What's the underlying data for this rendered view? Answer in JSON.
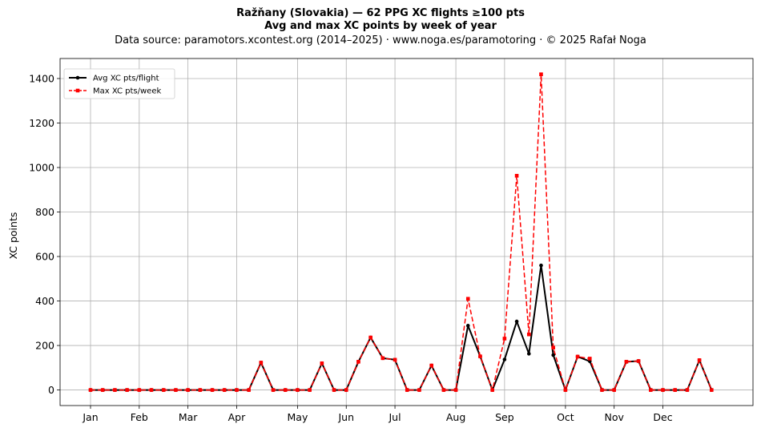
{
  "chart_data": {
    "type": "line",
    "title": "Ražňany (Slovakia)  —  62 PPG XC flights ≥100 pts",
    "subtitle": "Avg and max XC points by week of year",
    "source": "Data source: paramotors.xcontest.org (2014–2025)  ·  www.noga.es/paramotoring  ·  © 2025 Rafał Noga",
    "xlabel": "",
    "ylabel": "XC points",
    "ylim": [
      -70,
      1490
    ],
    "yticks": [
      0,
      200,
      400,
      600,
      800,
      1000,
      1200,
      1400
    ],
    "grid": true,
    "legend_position": "top-left",
    "month_ticks": [
      {
        "label": "Jan",
        "week": 1
      },
      {
        "label": "Feb",
        "week": 5
      },
      {
        "label": "Mar",
        "week": 9
      },
      {
        "label": "Apr",
        "week": 13
      },
      {
        "label": "May",
        "week": 18
      },
      {
        "label": "Jun",
        "week": 22
      },
      {
        "label": "Jul",
        "week": 26
      },
      {
        "label": "Aug",
        "week": 31
      },
      {
        "label": "Sep",
        "week": 35
      },
      {
        "label": "Oct",
        "week": 40
      },
      {
        "label": "Nov",
        "week": 44
      },
      {
        "label": "Dec",
        "week": 48
      }
    ],
    "x": [
      1,
      2,
      3,
      4,
      5,
      6,
      7,
      8,
      9,
      10,
      11,
      12,
      13,
      14,
      15,
      16,
      17,
      18,
      19,
      20,
      21,
      22,
      23,
      24,
      25,
      26,
      27,
      28,
      29,
      30,
      31,
      32,
      33,
      34,
      35,
      36,
      37,
      38,
      39,
      40,
      41,
      42,
      43,
      44,
      45,
      46,
      47,
      48,
      49,
      50,
      51,
      52
    ],
    "series": [
      {
        "name": "Avg XC pts/flight",
        "color": "#000000",
        "style": "solid",
        "marker": "circle",
        "values": [
          0,
          0,
          0,
          0,
          0,
          0,
          0,
          0,
          0,
          0,
          0,
          0,
          0,
          0,
          123,
          0,
          0,
          0,
          0,
          120,
          0,
          0,
          127,
          236,
          143,
          136,
          0,
          0,
          110,
          0,
          0,
          289,
          151,
          0,
          137,
          308,
          163,
          560,
          157,
          0,
          150,
          129,
          0,
          0,
          127,
          130,
          0,
          0,
          0,
          0,
          134,
          0
        ]
      },
      {
        "name": "Max XC pts/week",
        "color": "#ff0000",
        "style": "dashed",
        "marker": "square",
        "values": [
          0,
          0,
          0,
          0,
          0,
          0,
          0,
          0,
          0,
          0,
          0,
          0,
          0,
          0,
          123,
          0,
          0,
          0,
          0,
          120,
          0,
          0,
          127,
          236,
          143,
          136,
          0,
          0,
          110,
          0,
          0,
          410,
          151,
          0,
          231,
          963,
          250,
          1419,
          190,
          0,
          150,
          141,
          0,
          0,
          127,
          130,
          0,
          0,
          0,
          0,
          134,
          0
        ]
      }
    ]
  }
}
